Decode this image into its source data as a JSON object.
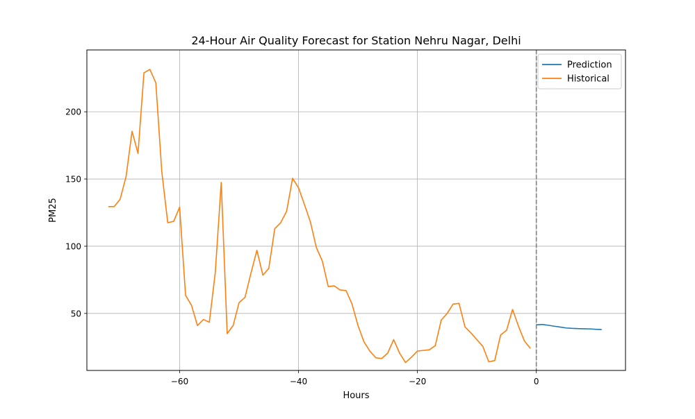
{
  "chart_data": {
    "type": "line",
    "title": "24-Hour Air Quality Forecast for Station Nehru Nagar, Delhi",
    "xlabel": "Hours",
    "ylabel": "PM25",
    "xlim": [
      -75.6,
      15
    ],
    "ylim": [
      7.6,
      246
    ],
    "x_ticks": [
      -60,
      -40,
      -20,
      0
    ],
    "y_ticks": [
      50,
      100,
      150,
      200
    ],
    "grid": true,
    "legend_position": "top-right",
    "vline": {
      "x": 0,
      "style": "dashed",
      "color": "#808080"
    },
    "series": [
      {
        "name": "Prediction",
        "color": "#1f77b4",
        "x": [
          0,
          1,
          2,
          3,
          4,
          5,
          6,
          7,
          8,
          9,
          10,
          11
        ],
        "y": [
          41.5,
          41.8,
          41.2,
          40.5,
          39.9,
          39.2,
          38.9,
          38.7,
          38.6,
          38.5,
          38.2,
          38.0
        ]
      },
      {
        "name": "Historical",
        "color": "#ff7f0e",
        "x": [
          -72,
          -71,
          -70,
          -69,
          -68,
          -67,
          -66,
          -65,
          -64,
          -63,
          -62,
          -61,
          -60,
          -59,
          -58,
          -57,
          -56,
          -55,
          -54,
          -53,
          -52,
          -51,
          -50,
          -49,
          -48,
          -47,
          -46,
          -45,
          -44,
          -43,
          -42,
          -41,
          -40,
          -39,
          -38,
          -37,
          -36,
          -35,
          -34,
          -33,
          -32,
          -31,
          -30,
          -29,
          -28,
          -27,
          -26,
          -25,
          -24,
          -23,
          -22,
          -21,
          -20,
          -19,
          -18,
          -17,
          -16,
          -15,
          -14,
          -13,
          -12,
          -11,
          -10,
          -9,
          -8,
          -7,
          -6,
          -5,
          -4,
          -3,
          -2,
          -1
        ],
        "y": [
          129.5,
          129.5,
          135,
          152,
          185.5,
          169,
          229,
          231.5,
          221.5,
          155.5,
          117.5,
          118.5,
          129,
          63.5,
          56,
          41,
          45.5,
          43.5,
          80.5,
          147.5,
          35,
          41,
          58,
          62,
          80,
          97,
          78.5,
          83.5,
          113,
          117.5,
          126,
          150.5,
          143.5,
          131,
          118,
          99,
          89,
          70,
          70.5,
          67.5,
          67,
          57,
          41,
          29,
          22,
          17,
          16.5,
          20.5,
          30.5,
          20.5,
          13.5,
          17.5,
          22,
          22.5,
          23,
          26,
          45,
          50,
          57,
          57.5,
          40,
          35.5,
          30.5,
          25.5,
          14,
          15,
          34,
          37.5,
          53,
          40.5,
          29.5,
          24
        ]
      }
    ]
  }
}
